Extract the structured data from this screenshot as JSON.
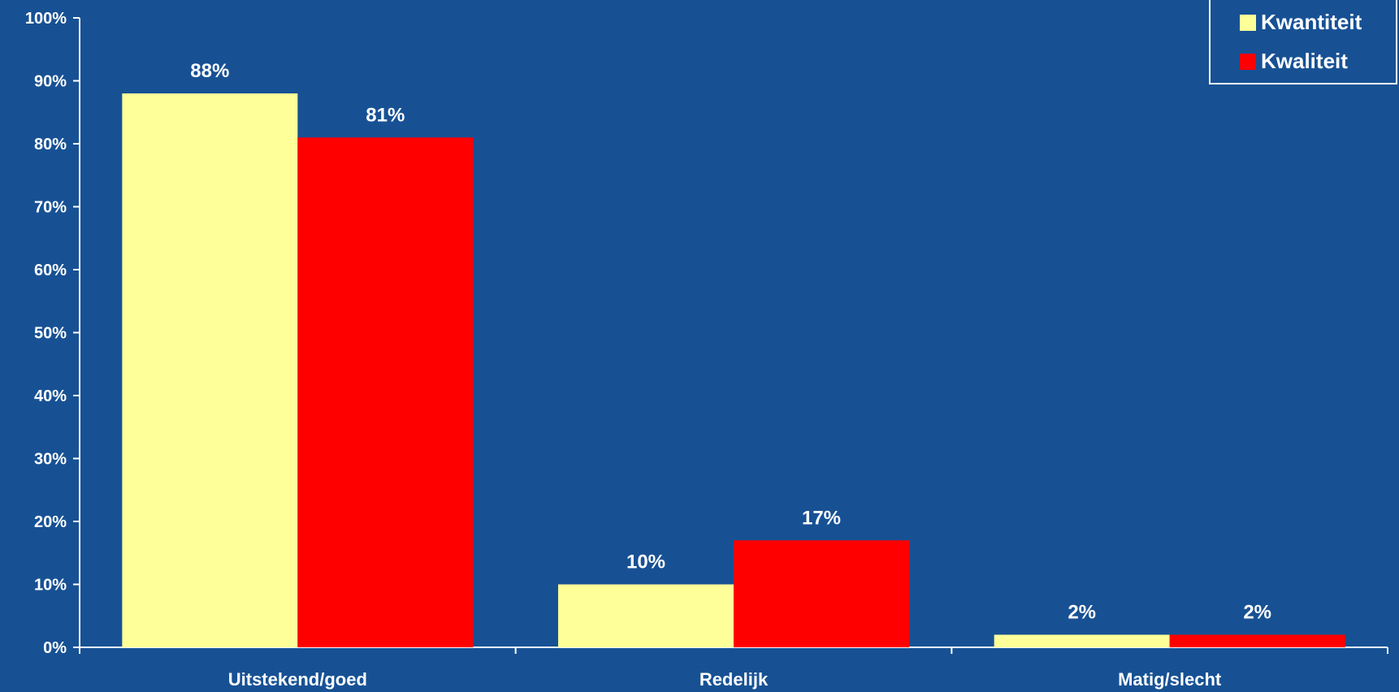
{
  "colors": {
    "background": "#175194",
    "axis": "#ffffff",
    "text": "#ffffff"
  },
  "legend": {
    "position": "top-right",
    "items": [
      {
        "label": "Kwantiteit",
        "color": "#ffff99"
      },
      {
        "label": "Kwaliteit",
        "color": "#ff0000"
      }
    ]
  },
  "chart_data": {
    "type": "bar",
    "categories": [
      "Uitstekend/goed",
      "Redelijk",
      "Matig/slecht"
    ],
    "series": [
      {
        "name": "Kwantiteit",
        "color": "#ffff99",
        "values": [
          88,
          10,
          2
        ],
        "labels": [
          "88%",
          "10%",
          "2%"
        ]
      },
      {
        "name": "Kwaliteit",
        "color": "#ff0000",
        "values": [
          81,
          17,
          2
        ],
        "labels": [
          "81%",
          "17%",
          "2%"
        ]
      }
    ],
    "title": "",
    "xlabel": "",
    "ylabel": "",
    "ylim": [
      0,
      100
    ],
    "yticks": [
      0,
      10,
      20,
      30,
      40,
      50,
      60,
      70,
      80,
      90,
      100
    ],
    "ytick_labels": [
      "0%",
      "10%",
      "20%",
      "30%",
      "40%",
      "50%",
      "60%",
      "70%",
      "80%",
      "90%",
      "100%"
    ],
    "grid": false
  }
}
